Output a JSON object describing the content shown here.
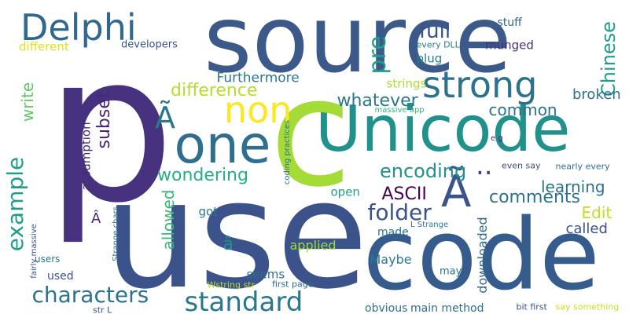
{
  "words": [
    {
      "text": "source",
      "color": "#3b5a8a"
    },
    {
      "text": "p",
      "color": "#46327e"
    },
    {
      "text": "use",
      "color": "#3b528b"
    },
    {
      "text": "code",
      "color": "#365c8d"
    },
    {
      "text": "Unicode",
      "color": "#21918c"
    },
    {
      "text": "c",
      "color": "#a5db36"
    },
    {
      "text": "one",
      "color": "#2e6e8e"
    },
    {
      "text": "Delphi",
      "color": "#31688e"
    },
    {
      "text": "strong",
      "color": "#2c728e"
    },
    {
      "text": "non",
      "color": "#fde725"
    },
    {
      "text": "Ã",
      "color": "#2a788e"
    },
    {
      "text": "Ã",
      "color": "#3b528b"
    },
    {
      "text": "example",
      "color": "#1f9e89"
    },
    {
      "text": "characters",
      "color": "#2c728e"
    },
    {
      "text": "standard",
      "color": "#2a788e"
    },
    {
      "text": "full",
      "color": "#3b528b"
    },
    {
      "text": "pre",
      "color": "#1f9e89"
    },
    {
      "text": "Chinese",
      "color": "#1f9e89"
    },
    {
      "text": "difference",
      "color": "#b5de2b"
    },
    {
      "text": "whatever",
      "color": "#2a788e"
    },
    {
      "text": "subset",
      "color": "#482576"
    },
    {
      "text": "folder",
      "color": "#3b528b"
    },
    {
      "text": "encoding",
      "color": "#21918c"
    },
    {
      "text": "..",
      "color": "#404387"
    },
    {
      "text": "ASCII",
      "color": "#440154"
    },
    {
      "text": "comments",
      "color": "#2c728e"
    },
    {
      "text": "learning",
      "color": "#2c728e"
    },
    {
      "text": "common",
      "color": "#2c728e"
    },
    {
      "text": "broken",
      "color": "#2c728e"
    },
    {
      "text": "Edit",
      "color": "#bddf26"
    },
    {
      "text": "called",
      "color": "#3b528b"
    },
    {
      "text": "wondering",
      "color": "#29af7f"
    },
    {
      "text": "allowed",
      "color": "#35b779"
    },
    {
      "text": "write",
      "color": "#5ec962"
    },
    {
      "text": "Furthermore",
      "color": "#2a788e"
    },
    {
      "text": "different",
      "color": "#dde318"
    },
    {
      "text": "developers",
      "color": "#3b528b"
    },
    {
      "text": "stuff",
      "color": "#31688e"
    },
    {
      "text": "munged",
      "color": "#46327e"
    },
    {
      "text": "plug",
      "color": "#287d8e"
    },
    {
      "text": "strings",
      "color": "#addc30"
    },
    {
      "text": "assumption",
      "color": "#472d7b"
    },
    {
      "text": "every DLL",
      "color": "#2a788e"
    },
    {
      "text": "massive app",
      "color": "#35b779"
    },
    {
      "text": "e g",
      "color": "#482475"
    },
    {
      "text": "even say",
      "color": "#3e4989"
    },
    {
      "text": "nearly every",
      "color": "#2e6e8e"
    },
    {
      "text": "coding practices",
      "color": "#2c728e"
    },
    {
      "text": "Strange chars",
      "color": "#2c728e"
    },
    {
      "text": "L Strange",
      "color": "#2a788e"
    },
    {
      "text": "got",
      "color": "#2a788e"
    },
    {
      "text": "open",
      "color": "#1f9e89"
    },
    {
      "text": "â",
      "color": "#21918c"
    },
    {
      "text": "Â",
      "color": "#482878"
    },
    {
      "text": "applied",
      "color": "#a0da39"
    },
    {
      "text": "made",
      "color": "#2c728e"
    },
    {
      "text": "downloaded",
      "color": "#31688e"
    },
    {
      "text": "seems",
      "color": "#2c728e"
    },
    {
      "text": "Maybe",
      "color": "#2a788e"
    },
    {
      "text": "used",
      "color": "#3b528b"
    },
    {
      "text": "users",
      "color": "#2a788e"
    },
    {
      "text": "fairly massive",
      "color": "#3b528b"
    },
    {
      "text": "may",
      "color": "#2c728e"
    },
    {
      "text": "Wstring str",
      "color": "#b5de2b"
    },
    {
      "text": "first page",
      "color": "#31688e"
    },
    {
      "text": "obvious",
      "color": "#2c728e"
    },
    {
      "text": "main method",
      "color": "#2e6e8e"
    },
    {
      "text": "bit first",
      "color": "#3b528b"
    },
    {
      "text": "say something",
      "color": "#c8e020"
    },
    {
      "text": "str L",
      "color": "#3b528b"
    }
  ]
}
